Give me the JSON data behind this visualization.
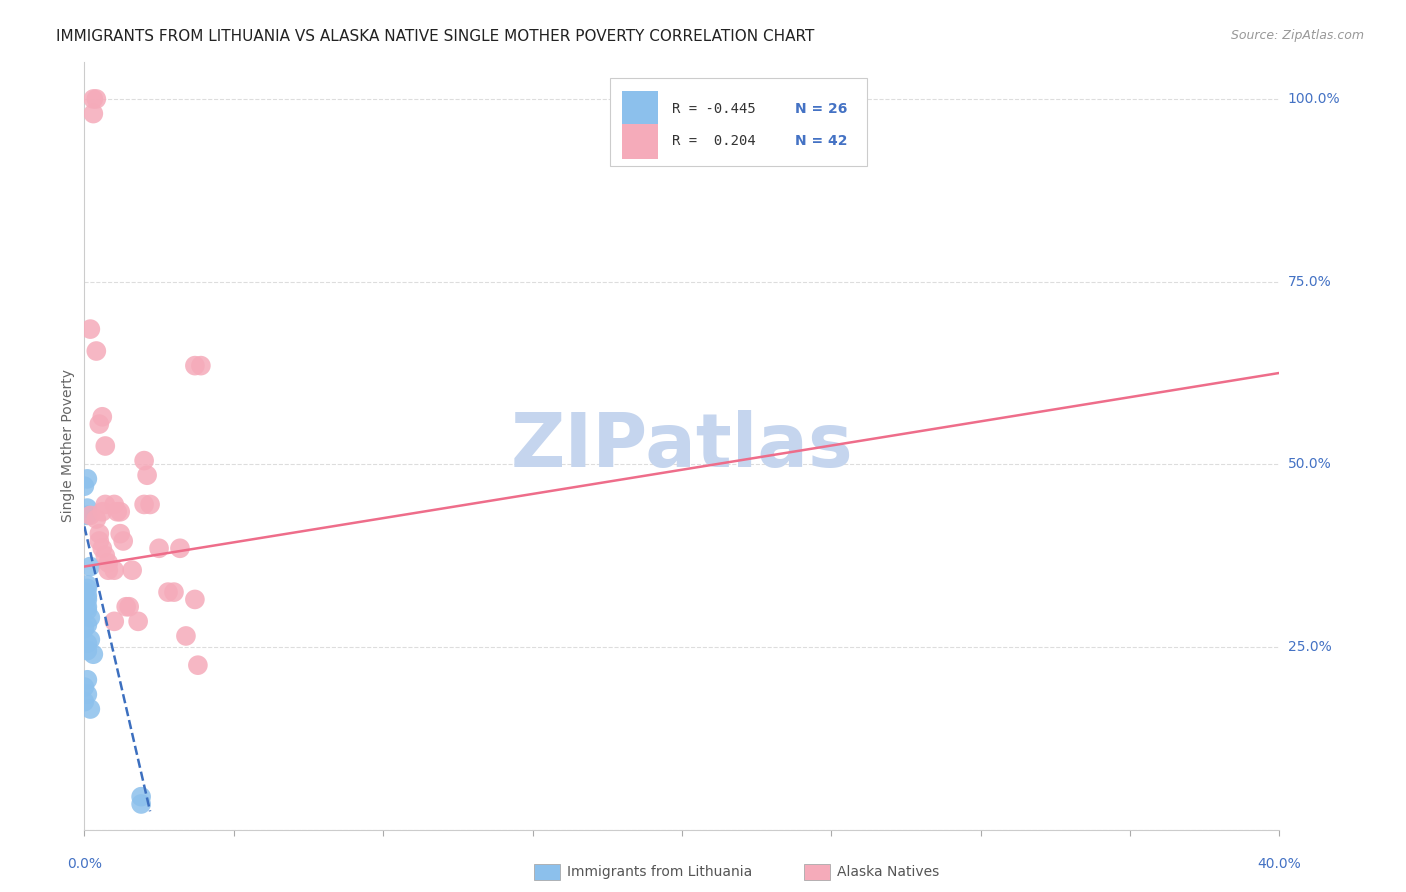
{
  "title": "IMMIGRANTS FROM LITHUANIA VS ALASKA NATIVE SINGLE MOTHER POVERTY CORRELATION CHART",
  "source": "Source: ZipAtlas.com",
  "ylabel": "Single Mother Poverty",
  "watermark": "ZIPatlas",
  "blue_scatter_x": [
    0.0,
    0.001,
    0.001,
    0.002,
    0.001,
    0.001,
    0.0,
    0.001,
    0.001,
    0.001,
    0.001,
    0.002,
    0.001,
    0.0,
    0.002,
    0.001,
    0.001,
    0.003,
    0.001,
    0.0,
    0.001,
    0.0,
    0.002,
    0.019,
    0.019,
    0.001
  ],
  "blue_scatter_y": [
    0.47,
    0.44,
    0.43,
    0.36,
    0.335,
    0.33,
    0.325,
    0.32,
    0.315,
    0.305,
    0.3,
    0.29,
    0.28,
    0.275,
    0.26,
    0.255,
    0.245,
    0.24,
    0.205,
    0.195,
    0.185,
    0.175,
    0.165,
    0.045,
    0.035,
    0.48
  ],
  "pink_scatter_x": [
    0.002,
    0.003,
    0.004,
    0.003,
    0.005,
    0.006,
    0.007,
    0.007,
    0.004,
    0.005,
    0.005,
    0.006,
    0.007,
    0.008,
    0.01,
    0.01,
    0.011,
    0.012,
    0.013,
    0.014,
    0.016,
    0.018,
    0.02,
    0.021,
    0.022,
    0.025,
    0.028,
    0.03,
    0.032,
    0.034,
    0.037,
    0.038,
    0.039,
    0.002,
    0.004,
    0.006,
    0.008,
    0.01,
    0.012,
    0.015,
    0.02,
    0.037
  ],
  "pink_scatter_y": [
    0.43,
    1.0,
    1.0,
    0.98,
    0.555,
    0.565,
    0.525,
    0.445,
    0.425,
    0.405,
    0.395,
    0.385,
    0.375,
    0.365,
    0.355,
    0.445,
    0.435,
    0.405,
    0.395,
    0.305,
    0.355,
    0.285,
    0.505,
    0.485,
    0.445,
    0.385,
    0.325,
    0.325,
    0.385,
    0.265,
    0.315,
    0.225,
    0.635,
    0.685,
    0.655,
    0.435,
    0.355,
    0.285,
    0.435,
    0.305,
    0.445,
    0.635
  ],
  "blue_line_x": [
    0.0,
    0.022
  ],
  "blue_line_y": [
    0.415,
    0.025
  ],
  "pink_line_x": [
    0.0,
    0.4
  ],
  "pink_line_y": [
    0.36,
    0.625
  ],
  "xlim": [
    0.0,
    0.4
  ],
  "ylim": [
    0.0,
    1.05
  ],
  "blue_color": "#8CC0EC",
  "pink_color": "#F5ABBA",
  "blue_line_color": "#3C6FBF",
  "pink_line_color": "#EE6D8A",
  "title_fontsize": 11,
  "source_fontsize": 9,
  "watermark_color": "#C5D5EE",
  "background_color": "#FFFFFF",
  "grid_color": "#DDDDDD"
}
